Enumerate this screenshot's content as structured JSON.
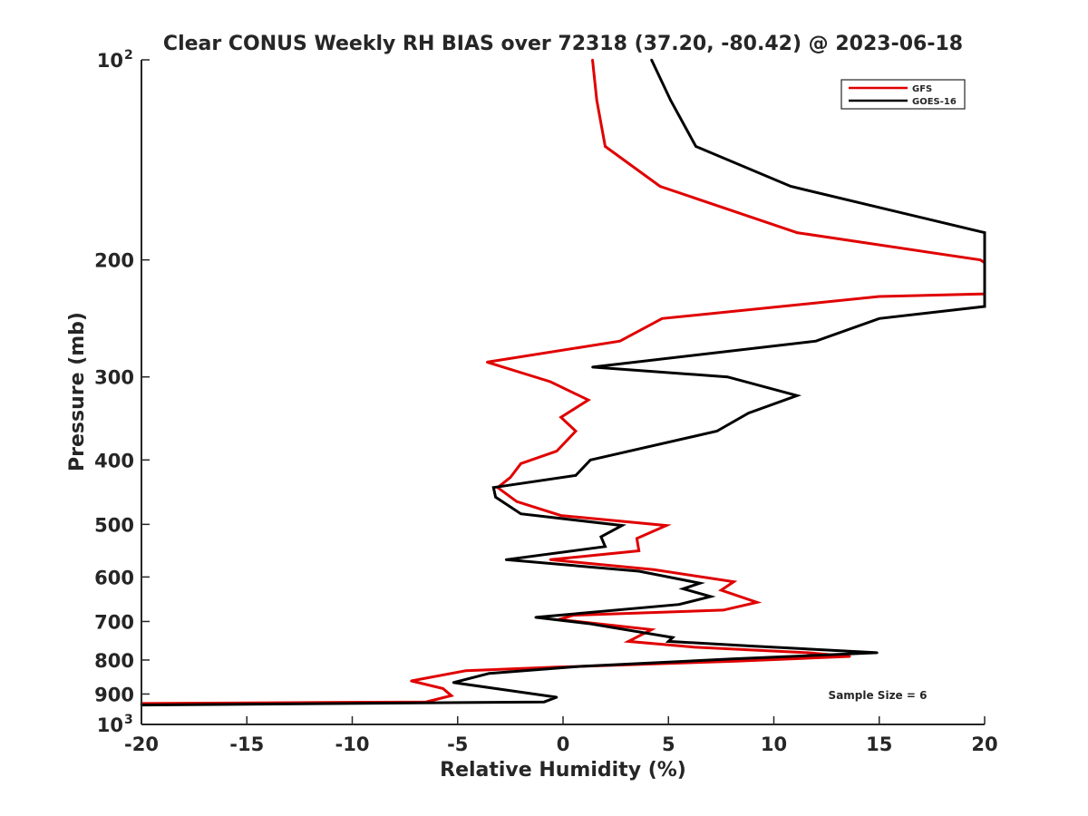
{
  "chart_data": {
    "type": "line",
    "title": "Clear CONUS Weekly RH BIAS over 72318 (37.20, -80.42) @ 2023-06-18",
    "xlabel": "Relative Humidity (%)",
    "ylabel": "Pressure (mb)",
    "xlim": [
      -20,
      20
    ],
    "ylim": [
      100,
      1000
    ],
    "yscale": "log",
    "y_reversed": true,
    "x_ticks": [
      "-20",
      "-15",
      "-10",
      "-5",
      "0",
      "5",
      "10",
      "15",
      "20"
    ],
    "y_ticks": [
      {
        "value": 100,
        "base": "10",
        "exp": "2"
      },
      {
        "value": 200,
        "base": "200",
        "exp": ""
      },
      {
        "value": 300,
        "base": "300",
        "exp": ""
      },
      {
        "value": 400,
        "base": "400",
        "exp": ""
      },
      {
        "value": 500,
        "base": "500",
        "exp": ""
      },
      {
        "value": 600,
        "base": "600",
        "exp": ""
      },
      {
        "value": 700,
        "base": "700",
        "exp": ""
      },
      {
        "value": 800,
        "base": "800",
        "exp": ""
      },
      {
        "value": 900,
        "base": "900",
        "exp": ""
      },
      {
        "value": 1000,
        "base": "10",
        "exp": "3"
      }
    ],
    "grid": false,
    "legend_position": "top-right",
    "annotation": "Sample Size = 6",
    "series": [
      {
        "name": "GFS",
        "color": "#e00000",
        "points": [
          [
            1.4,
            100
          ],
          [
            1.6,
            115
          ],
          [
            2.0,
            135
          ],
          [
            4.6,
            155
          ],
          [
            11.1,
            182
          ],
          [
            19.8,
            200
          ],
          [
            20.0,
            202
          ],
          [
            20.0,
            225
          ],
          [
            15.0,
            227
          ],
          [
            4.7,
            245
          ],
          [
            2.7,
            265
          ],
          [
            -3.6,
            285
          ],
          [
            -0.6,
            305
          ],
          [
            1.2,
            325
          ],
          [
            -0.1,
            345
          ],
          [
            0.6,
            362
          ],
          [
            -0.3,
            388
          ],
          [
            -2.0,
            405
          ],
          [
            -2.5,
            425
          ],
          [
            -3.1,
            440
          ],
          [
            -2.2,
            462
          ],
          [
            -0.1,
            485
          ],
          [
            4.9,
            502
          ],
          [
            3.5,
            525
          ],
          [
            3.6,
            548
          ],
          [
            -0.6,
            565
          ],
          [
            4.3,
            585
          ],
          [
            8.1,
            610
          ],
          [
            7.5,
            628
          ],
          [
            9.2,
            655
          ],
          [
            7.6,
            673
          ],
          [
            0.5,
            685
          ],
          [
            -0.2,
            695
          ],
          [
            4.2,
            720
          ],
          [
            3.1,
            750
          ],
          [
            6.2,
            765
          ],
          [
            11.6,
            780
          ],
          [
            13.6,
            790
          ],
          [
            8.2,
            803
          ],
          [
            -0.3,
            820
          ],
          [
            -4.6,
            830
          ],
          [
            -7.2,
            860
          ],
          [
            -5.7,
            883
          ],
          [
            -5.3,
            905
          ],
          [
            -6.5,
            925
          ],
          [
            -20.0,
            930
          ]
        ]
      },
      {
        "name": "GOES-16",
        "color": "#000000",
        "points": [
          [
            4.2,
            100
          ],
          [
            5.1,
            115
          ],
          [
            6.3,
            135
          ],
          [
            10.8,
            155
          ],
          [
            20.0,
            182
          ],
          [
            20.0,
            235
          ],
          [
            15.0,
            245
          ],
          [
            12.0,
            265
          ],
          [
            1.4,
            290
          ],
          [
            7.8,
            300
          ],
          [
            11.1,
            320
          ],
          [
            8.8,
            340
          ],
          [
            7.3,
            362
          ],
          [
            1.3,
            400
          ],
          [
            0.6,
            422
          ],
          [
            -3.3,
            440
          ],
          [
            -3.2,
            455
          ],
          [
            -2.0,
            482
          ],
          [
            2.8,
            502
          ],
          [
            1.8,
            522
          ],
          [
            2.0,
            540
          ],
          [
            -2.7,
            565
          ],
          [
            3.6,
            588
          ],
          [
            6.5,
            613
          ],
          [
            5.7,
            625
          ],
          [
            7.0,
            642
          ],
          [
            5.5,
            660
          ],
          [
            -1.3,
            690
          ],
          [
            1.2,
            705
          ],
          [
            5.2,
            740
          ],
          [
            5.0,
            750
          ],
          [
            8.9,
            762
          ],
          [
            14.9,
            780
          ],
          [
            8.0,
            797
          ],
          [
            0.8,
            818
          ],
          [
            -3.5,
            838
          ],
          [
            -5.2,
            865
          ],
          [
            -0.3,
            910
          ],
          [
            -0.9,
            925
          ],
          [
            -20.0,
            935
          ]
        ]
      }
    ]
  }
}
